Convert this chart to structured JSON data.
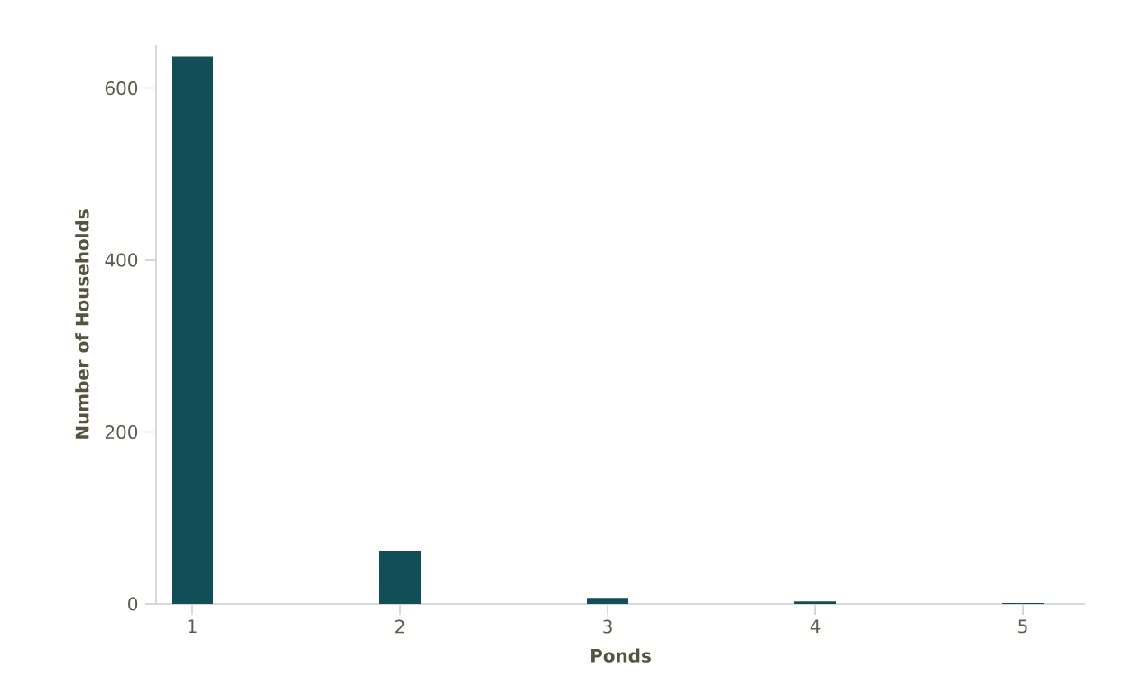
{
  "chart_data": {
    "type": "bar",
    "xlabel": "Ponds",
    "ylabel": "Number of Households",
    "x": [
      1,
      2,
      3,
      4,
      5
    ],
    "values": [
      637,
      62,
      7,
      3,
      1
    ],
    "color": "#124e57",
    "xlim": [
      0.826,
      5.3
    ],
    "ylim": [
      0,
      650
    ],
    "xticks": [
      1,
      2,
      3,
      4,
      5
    ],
    "yticks": [
      0,
      200,
      400,
      600
    ]
  }
}
